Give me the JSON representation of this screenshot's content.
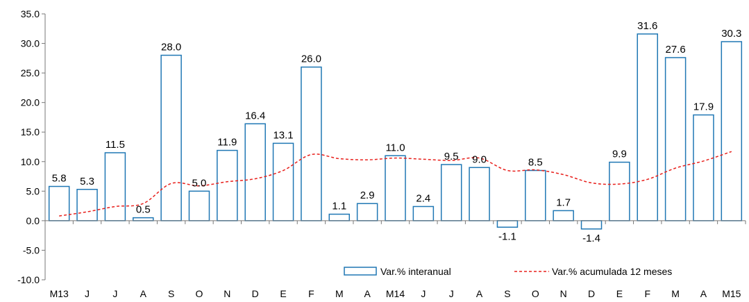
{
  "chart_data": {
    "type": "bar",
    "categories": [
      "M13",
      "J",
      "J",
      "A",
      "S",
      "O",
      "N",
      "D",
      "E",
      "F",
      "M",
      "A",
      "M14",
      "J",
      "J",
      "A",
      "S",
      "O",
      "N",
      "D",
      "E",
      "F",
      "M",
      "A",
      "M15"
    ],
    "series": [
      {
        "name": "Var.% interanual",
        "type": "bar",
        "color": "#1f77b4",
        "values": [
          5.8,
          5.3,
          11.5,
          0.5,
          28.0,
          5.0,
          11.9,
          16.4,
          13.1,
          26.0,
          1.1,
          2.9,
          11.0,
          2.4,
          9.5,
          9.0,
          -1.1,
          8.5,
          1.7,
          -1.4,
          9.9,
          31.6,
          27.6,
          17.9,
          30.3
        ],
        "labels": [
          "5.8",
          "5.3",
          "11.5",
          "0.5",
          "28.0",
          "5.0",
          "11.9",
          "16.4",
          "13.1",
          "26.0",
          "1.1",
          "2.9",
          "11.0",
          "2.4",
          "9.5",
          "9.0",
          "-1.1",
          "8.5",
          "1.7",
          "-1.4",
          "9.9",
          "31.6",
          "27.6",
          "17.9",
          "30.3"
        ]
      },
      {
        "name": "Var.% acumulada 12 meses",
        "type": "line",
        "style": "dashed",
        "color": "#e8201c",
        "values": [
          0.8,
          1.5,
          2.4,
          2.9,
          6.3,
          5.9,
          6.6,
          7.1,
          8.5,
          11.2,
          10.5,
          10.3,
          10.6,
          10.4,
          10.2,
          10.6,
          8.5,
          8.6,
          7.8,
          6.4,
          6.2,
          7.0,
          8.9,
          10.1,
          11.7
        ]
      }
    ],
    "ylim": [
      -10.0,
      35.0
    ],
    "yticks": [
      "-10.0",
      "-5.0",
      "0.0",
      "5.0",
      "10.0",
      "15.0",
      "20.0",
      "25.0",
      "30.0",
      "35.0"
    ],
    "title": "",
    "xlabel": "",
    "ylabel": "",
    "grid": false,
    "legend": "bottom-right"
  }
}
